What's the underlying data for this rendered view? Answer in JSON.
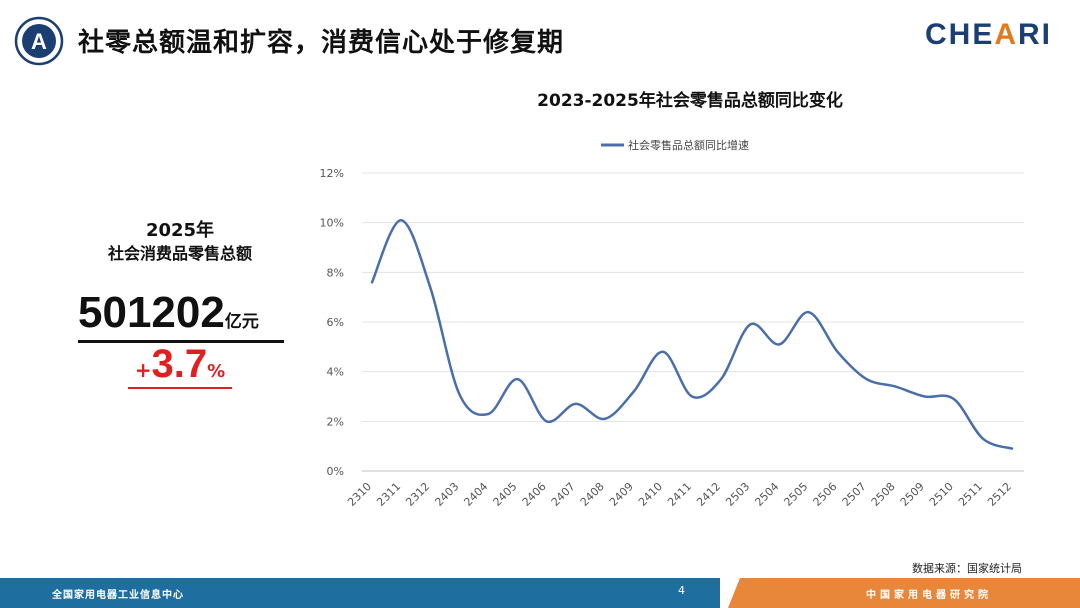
{
  "header": {
    "title": "社零总额温和扩容，消费信心处于修复期",
    "brand_main": "CHE",
    "brand_accent": "A",
    "brand_end": "RI",
    "logo_letter": "A"
  },
  "kpi": {
    "year": "2025年",
    "label": "社会消费品零售总额",
    "value": "501202",
    "unit": "亿元",
    "sign": "+",
    "growth": "3.7",
    "growth_unit": "%"
  },
  "chart_data": {
    "type": "line",
    "title": "2023-2025年社会零售品总额同比变化",
    "legend": "社会零售品总额同比增速",
    "legend_position": "top",
    "grid": true,
    "ylim": [
      0,
      12
    ],
    "y_ticks": [
      "0%",
      "2%",
      "4%",
      "6%",
      "8%",
      "10%",
      "12%"
    ],
    "categories": [
      "2310",
      "2311",
      "2312",
      "2403",
      "2404",
      "2405",
      "2406",
      "2407",
      "2408",
      "2409",
      "2410",
      "2411",
      "2412",
      "2503",
      "2504",
      "2505",
      "2506",
      "2507",
      "2508",
      "2509",
      "2510",
      "2511",
      "2512"
    ],
    "series": [
      {
        "name": "社会零售品总额同比增速",
        "color": "#4a6ea9",
        "values": [
          7.6,
          10.1,
          7.4,
          3.1,
          2.3,
          3.7,
          2.0,
          2.7,
          2.1,
          3.2,
          4.8,
          3.0,
          3.7,
          5.9,
          5.1,
          6.4,
          4.8,
          3.7,
          3.4,
          3.0,
          2.9,
          1.3,
          0.9
        ]
      }
    ]
  },
  "source": "数据来源：国家统计局",
  "footer": {
    "left": "全国家用电器工业信息中心",
    "page": "4",
    "right": "中国家用电器研究院"
  },
  "colors": {
    "footer_blue": "#1e6fa0",
    "footer_orange": "#e8863a",
    "accent_red": "#e02020",
    "line": "#4a6ea9"
  }
}
